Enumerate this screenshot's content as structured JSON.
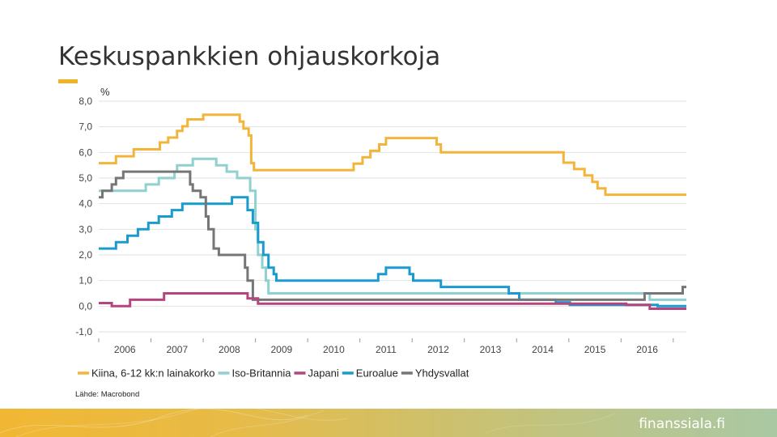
{
  "slide": {
    "title": "Keskuspankkien ohjauskorkoja",
    "brand": "finanssiala.fi"
  },
  "colors": {
    "accent": "#F0B323",
    "china": "#F2B53A",
    "uk": "#8FD0D0",
    "japan": "#B5457F",
    "euro": "#1A9BD0",
    "usa": "#767676"
  },
  "chart_data": {
    "type": "line",
    "unit_label": "%",
    "source": "Lähde: Macrobond",
    "ylim": [
      -1.0,
      8.0
    ],
    "yticks": [
      "8,0",
      "7,0",
      "6,0",
      "5,0",
      "4,0",
      "3,0",
      "2,0",
      "1,0",
      "0,0",
      "-1,0"
    ],
    "ytick_values": [
      8,
      7,
      6,
      5,
      4,
      3,
      2,
      1,
      0,
      -1
    ],
    "xlim": [
      2005.5,
      2016.75
    ],
    "xlabels": [
      "2006",
      "2007",
      "2008",
      "2009",
      "2010",
      "2011",
      "2012",
      "2013",
      "2014",
      "2015",
      "2016"
    ],
    "xlabel_values": [
      2006,
      2007,
      2008,
      2009,
      2010,
      2011,
      2012,
      2013,
      2014,
      2015,
      2016
    ],
    "grid": true,
    "legend_position": "bottom",
    "series": [
      {
        "name": "Kiina, 6-12 kk:n lainakorko",
        "color": "#F2B53A",
        "step": true,
        "points": [
          [
            2005.5,
            5.58
          ],
          [
            2005.83,
            5.85
          ],
          [
            2006.17,
            6.12
          ],
          [
            2006.67,
            6.39
          ],
          [
            2006.83,
            6.58
          ],
          [
            2007.0,
            6.84
          ],
          [
            2007.1,
            7.02
          ],
          [
            2007.2,
            7.29
          ],
          [
            2007.5,
            7.47
          ],
          [
            2008.2,
            7.2
          ],
          [
            2008.27,
            6.93
          ],
          [
            2008.37,
            6.66
          ],
          [
            2008.42,
            5.58
          ],
          [
            2008.47,
            5.31
          ],
          [
            2009.0,
            5.31
          ],
          [
            2010.3,
            5.31
          ],
          [
            2010.38,
            5.56
          ],
          [
            2010.55,
            5.81
          ],
          [
            2010.7,
            6.06
          ],
          [
            2010.87,
            6.31
          ],
          [
            2011.0,
            6.56
          ],
          [
            2011.9,
            6.56
          ],
          [
            2011.97,
            6.31
          ],
          [
            2012.05,
            6.0
          ],
          [
            2013.0,
            6.0
          ],
          [
            2014.0,
            6.0
          ],
          [
            2014.4,
            5.6
          ],
          [
            2014.6,
            5.35
          ],
          [
            2014.8,
            5.1
          ],
          [
            2014.95,
            4.85
          ],
          [
            2015.05,
            4.6
          ],
          [
            2015.2,
            4.35
          ],
          [
            2016.0,
            4.35
          ],
          [
            2016.75,
            4.35
          ]
        ]
      },
      {
        "name": "Iso-Britannia",
        "color": "#8FD0D0",
        "step": true,
        "points": [
          [
            2005.5,
            4.5
          ],
          [
            2005.62,
            4.5
          ],
          [
            2006.0,
            4.5
          ],
          [
            2006.4,
            4.75
          ],
          [
            2006.65,
            5.0
          ],
          [
            2006.95,
            5.25
          ],
          [
            2007.0,
            5.5
          ],
          [
            2007.3,
            5.75
          ],
          [
            2007.75,
            5.5
          ],
          [
            2007.95,
            5.25
          ],
          [
            2008.15,
            5.0
          ],
          [
            2008.3,
            5.0
          ],
          [
            2008.4,
            4.5
          ],
          [
            2008.5,
            3.0
          ],
          [
            2008.55,
            2.0
          ],
          [
            2008.63,
            1.5
          ],
          [
            2008.7,
            1.0
          ],
          [
            2008.75,
            0.5
          ],
          [
            2009.0,
            0.5
          ],
          [
            2016.0,
            0.5
          ],
          [
            2016.05,
            0.25
          ],
          [
            2016.75,
            0.25
          ]
        ]
      },
      {
        "name": "Japani",
        "color": "#B5457F",
        "step": true,
        "points": [
          [
            2005.5,
            0.12
          ],
          [
            2005.7,
            0.12
          ],
          [
            2005.75,
            0.0
          ],
          [
            2006.05,
            0.0
          ],
          [
            2006.1,
            0.25
          ],
          [
            2006.7,
            0.25
          ],
          [
            2006.75,
            0.5
          ],
          [
            2008.3,
            0.5
          ],
          [
            2008.35,
            0.3
          ],
          [
            2008.5,
            0.3
          ],
          [
            2008.55,
            0.1
          ],
          [
            2009.0,
            0.1
          ],
          [
            2013.0,
            0.1
          ],
          [
            2015.5,
            0.1
          ],
          [
            2015.6,
            0.05
          ],
          [
            2016.0,
            0.05
          ],
          [
            2016.05,
            -0.1
          ],
          [
            2016.75,
            -0.1
          ]
        ]
      },
      {
        "name": "Euroalue",
        "color": "#1A9BD0",
        "step": true,
        "points": [
          [
            2005.5,
            2.25
          ],
          [
            2005.7,
            2.25
          ],
          [
            2005.83,
            2.5
          ],
          [
            2006.05,
            2.75
          ],
          [
            2006.25,
            3.0
          ],
          [
            2006.45,
            3.25
          ],
          [
            2006.65,
            3.5
          ],
          [
            2006.9,
            3.75
          ],
          [
            2007.1,
            4.0
          ],
          [
            2008.0,
            4.0
          ],
          [
            2008.05,
            4.25
          ],
          [
            2008.3,
            4.25
          ],
          [
            2008.35,
            3.75
          ],
          [
            2008.45,
            3.25
          ],
          [
            2008.55,
            2.5
          ],
          [
            2008.65,
            2.0
          ],
          [
            2008.75,
            1.5
          ],
          [
            2008.85,
            1.25
          ],
          [
            2008.9,
            1.0
          ],
          [
            2009.0,
            1.0
          ],
          [
            2010.8,
            1.0
          ],
          [
            2010.85,
            1.25
          ],
          [
            2011.0,
            1.5
          ],
          [
            2011.35,
            1.5
          ],
          [
            2011.45,
            1.25
          ],
          [
            2011.52,
            1.0
          ],
          [
            2012.0,
            1.0
          ],
          [
            2012.05,
            0.75
          ],
          [
            2013.0,
            0.75
          ],
          [
            2013.35,
            0.5
          ],
          [
            2013.38,
            0.5
          ],
          [
            2013.55,
            0.25
          ],
          [
            2014.0,
            0.25
          ],
          [
            2014.25,
            0.15
          ],
          [
            2014.52,
            0.05
          ],
          [
            2016.0,
            0.05
          ],
          [
            2016.2,
            0.0
          ],
          [
            2016.75,
            0.0
          ]
        ]
      },
      {
        "name": "Yhdysvallat",
        "color": "#767676",
        "step": true,
        "points": [
          [
            2005.5,
            4.25
          ],
          [
            2005.57,
            4.5
          ],
          [
            2005.75,
            4.75
          ],
          [
            2005.83,
            5.0
          ],
          [
            2005.97,
            5.25
          ],
          [
            2006.55,
            5.25
          ],
          [
            2007.0,
            5.25
          ],
          [
            2007.2,
            5.25
          ],
          [
            2007.25,
            4.75
          ],
          [
            2007.3,
            4.5
          ],
          [
            2007.45,
            4.25
          ],
          [
            2007.55,
            3.5
          ],
          [
            2007.6,
            3.0
          ],
          [
            2007.7,
            2.25
          ],
          [
            2007.8,
            2.0
          ],
          [
            2008.15,
            2.0
          ],
          [
            2008.3,
            1.5
          ],
          [
            2008.35,
            1.0
          ],
          [
            2008.45,
            0.25
          ],
          [
            2009.0,
            0.25
          ],
          [
            2015.4,
            0.25
          ],
          [
            2015.5,
            0.25
          ],
          [
            2015.95,
            0.5
          ],
          [
            2016.6,
            0.5
          ],
          [
            2016.68,
            0.75
          ],
          [
            2016.75,
            0.75
          ]
        ]
      }
    ]
  }
}
